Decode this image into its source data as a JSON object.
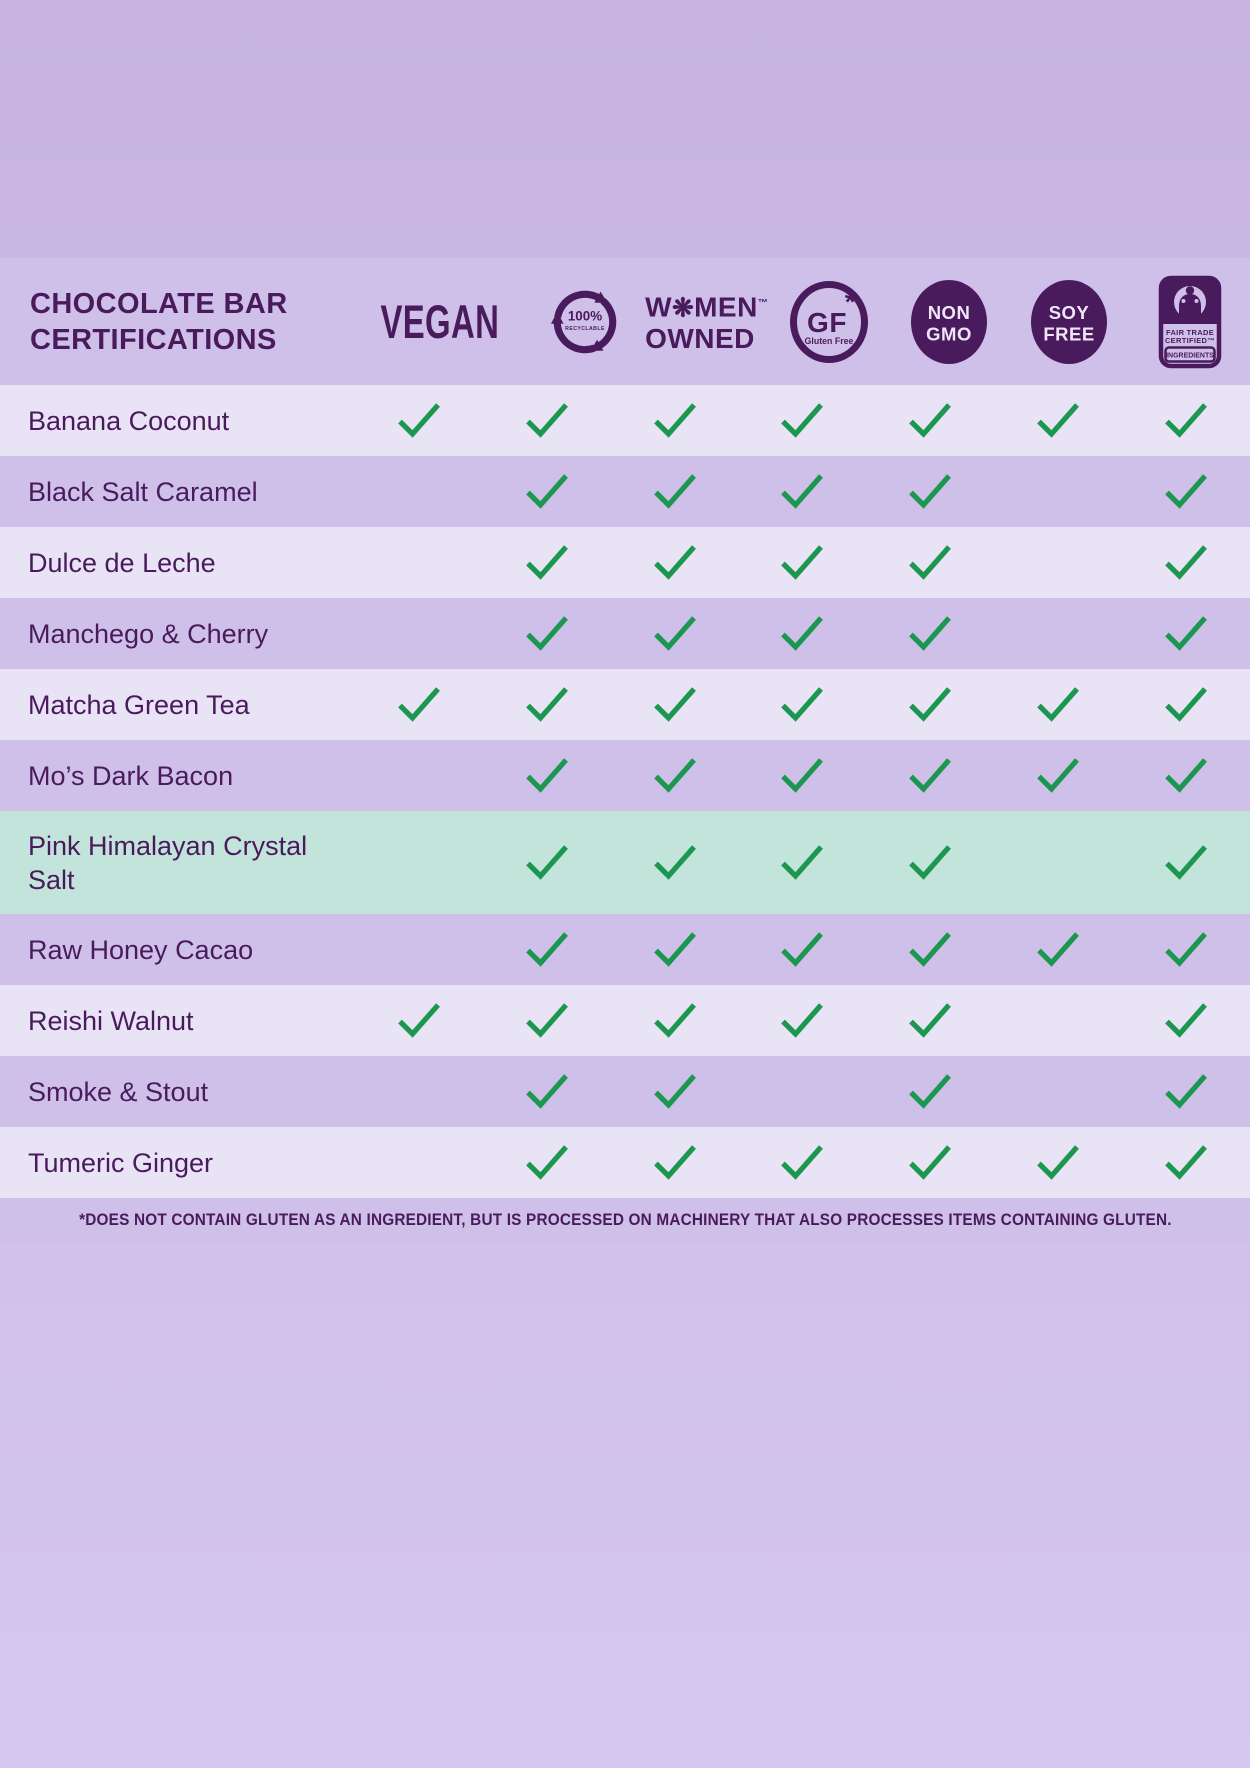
{
  "title": "CHOCOLATE BAR CERTIFICATIONS",
  "certifications": {
    "vegan": {
      "label": "VEGAN"
    },
    "recyclable": {
      "line1": "100%",
      "line2": "RECYCLABLE"
    },
    "women_owned": {
      "prefix": "W",
      "flower": "❋",
      "suffix": "MEN",
      "tm": "™",
      "line2": "OWNED"
    },
    "gluten_free": {
      "abbr": "GF",
      "asterisk": "*",
      "sub": "Gluten Free"
    },
    "non_gmo": {
      "line1": "NON",
      "line2": "GMO"
    },
    "soy_free": {
      "line1": "SOY",
      "line2": "FREE"
    },
    "fair_trade": {
      "line1": "FAIR TRADE",
      "line2": "CERTIFIED™",
      "line3": "INGREDIENTS"
    }
  },
  "chart_data": {
    "type": "table",
    "columns": [
      "VEGAN",
      "100% RECYCLABLE",
      "WOMEN OWNED",
      "GF GLUTEN FREE*",
      "NON GMO",
      "SOY FREE",
      "FAIR TRADE CERTIFIED INGREDIENTS"
    ],
    "rows": [
      {
        "flavor": "Banana Coconut",
        "checks": [
          true,
          true,
          true,
          true,
          true,
          true,
          true
        ],
        "highlight": false
      },
      {
        "flavor": "Black Salt Caramel",
        "checks": [
          false,
          true,
          true,
          true,
          true,
          false,
          true
        ],
        "highlight": false
      },
      {
        "flavor": "Dulce de Leche",
        "checks": [
          false,
          true,
          true,
          true,
          true,
          false,
          true
        ],
        "highlight": false
      },
      {
        "flavor": "Manchego & Cherry",
        "checks": [
          false,
          true,
          true,
          true,
          true,
          false,
          true
        ],
        "highlight": false
      },
      {
        "flavor": "Matcha Green Tea",
        "checks": [
          true,
          true,
          true,
          true,
          true,
          true,
          true
        ],
        "highlight": false
      },
      {
        "flavor": "Mo’s Dark Bacon",
        "checks": [
          false,
          true,
          true,
          true,
          true,
          true,
          true
        ],
        "highlight": false
      },
      {
        "flavor": "Pink Himalayan Crystal Salt",
        "checks": [
          false,
          true,
          true,
          true,
          true,
          false,
          true
        ],
        "highlight": true
      },
      {
        "flavor": "Raw Honey Cacao",
        "checks": [
          false,
          true,
          true,
          true,
          true,
          true,
          true
        ],
        "highlight": false
      },
      {
        "flavor": "Reishi Walnut",
        "checks": [
          true,
          true,
          true,
          true,
          true,
          false,
          true
        ],
        "highlight": false
      },
      {
        "flavor": "Smoke & Stout",
        "checks": [
          false,
          true,
          true,
          false,
          true,
          false,
          true
        ],
        "highlight": false
      },
      {
        "flavor": "Tumeric Ginger",
        "checks": [
          false,
          true,
          true,
          true,
          true,
          true,
          true
        ],
        "highlight": false
      }
    ],
    "highlighted_row": "Pink Himalayan Crystal Salt"
  },
  "footnote": "*DOES NOT CONTAIN GLUTEN AS AN INGREDIENT, BUT IS PROCESSED ON MACHINERY THAT ALSO PROCESSES ITEMS CONTAINING GLUTEN.",
  "colors": {
    "accent_purple": "#4a1b5c",
    "check_green": "#1b9750",
    "row_light": "#e9e3f6",
    "row_dark": "#cfc0e9",
    "highlight_mint": "#c3e4da",
    "page_bg_top": "#c8b3e2",
    "page_bg_bottom": "#d5c7ef"
  }
}
